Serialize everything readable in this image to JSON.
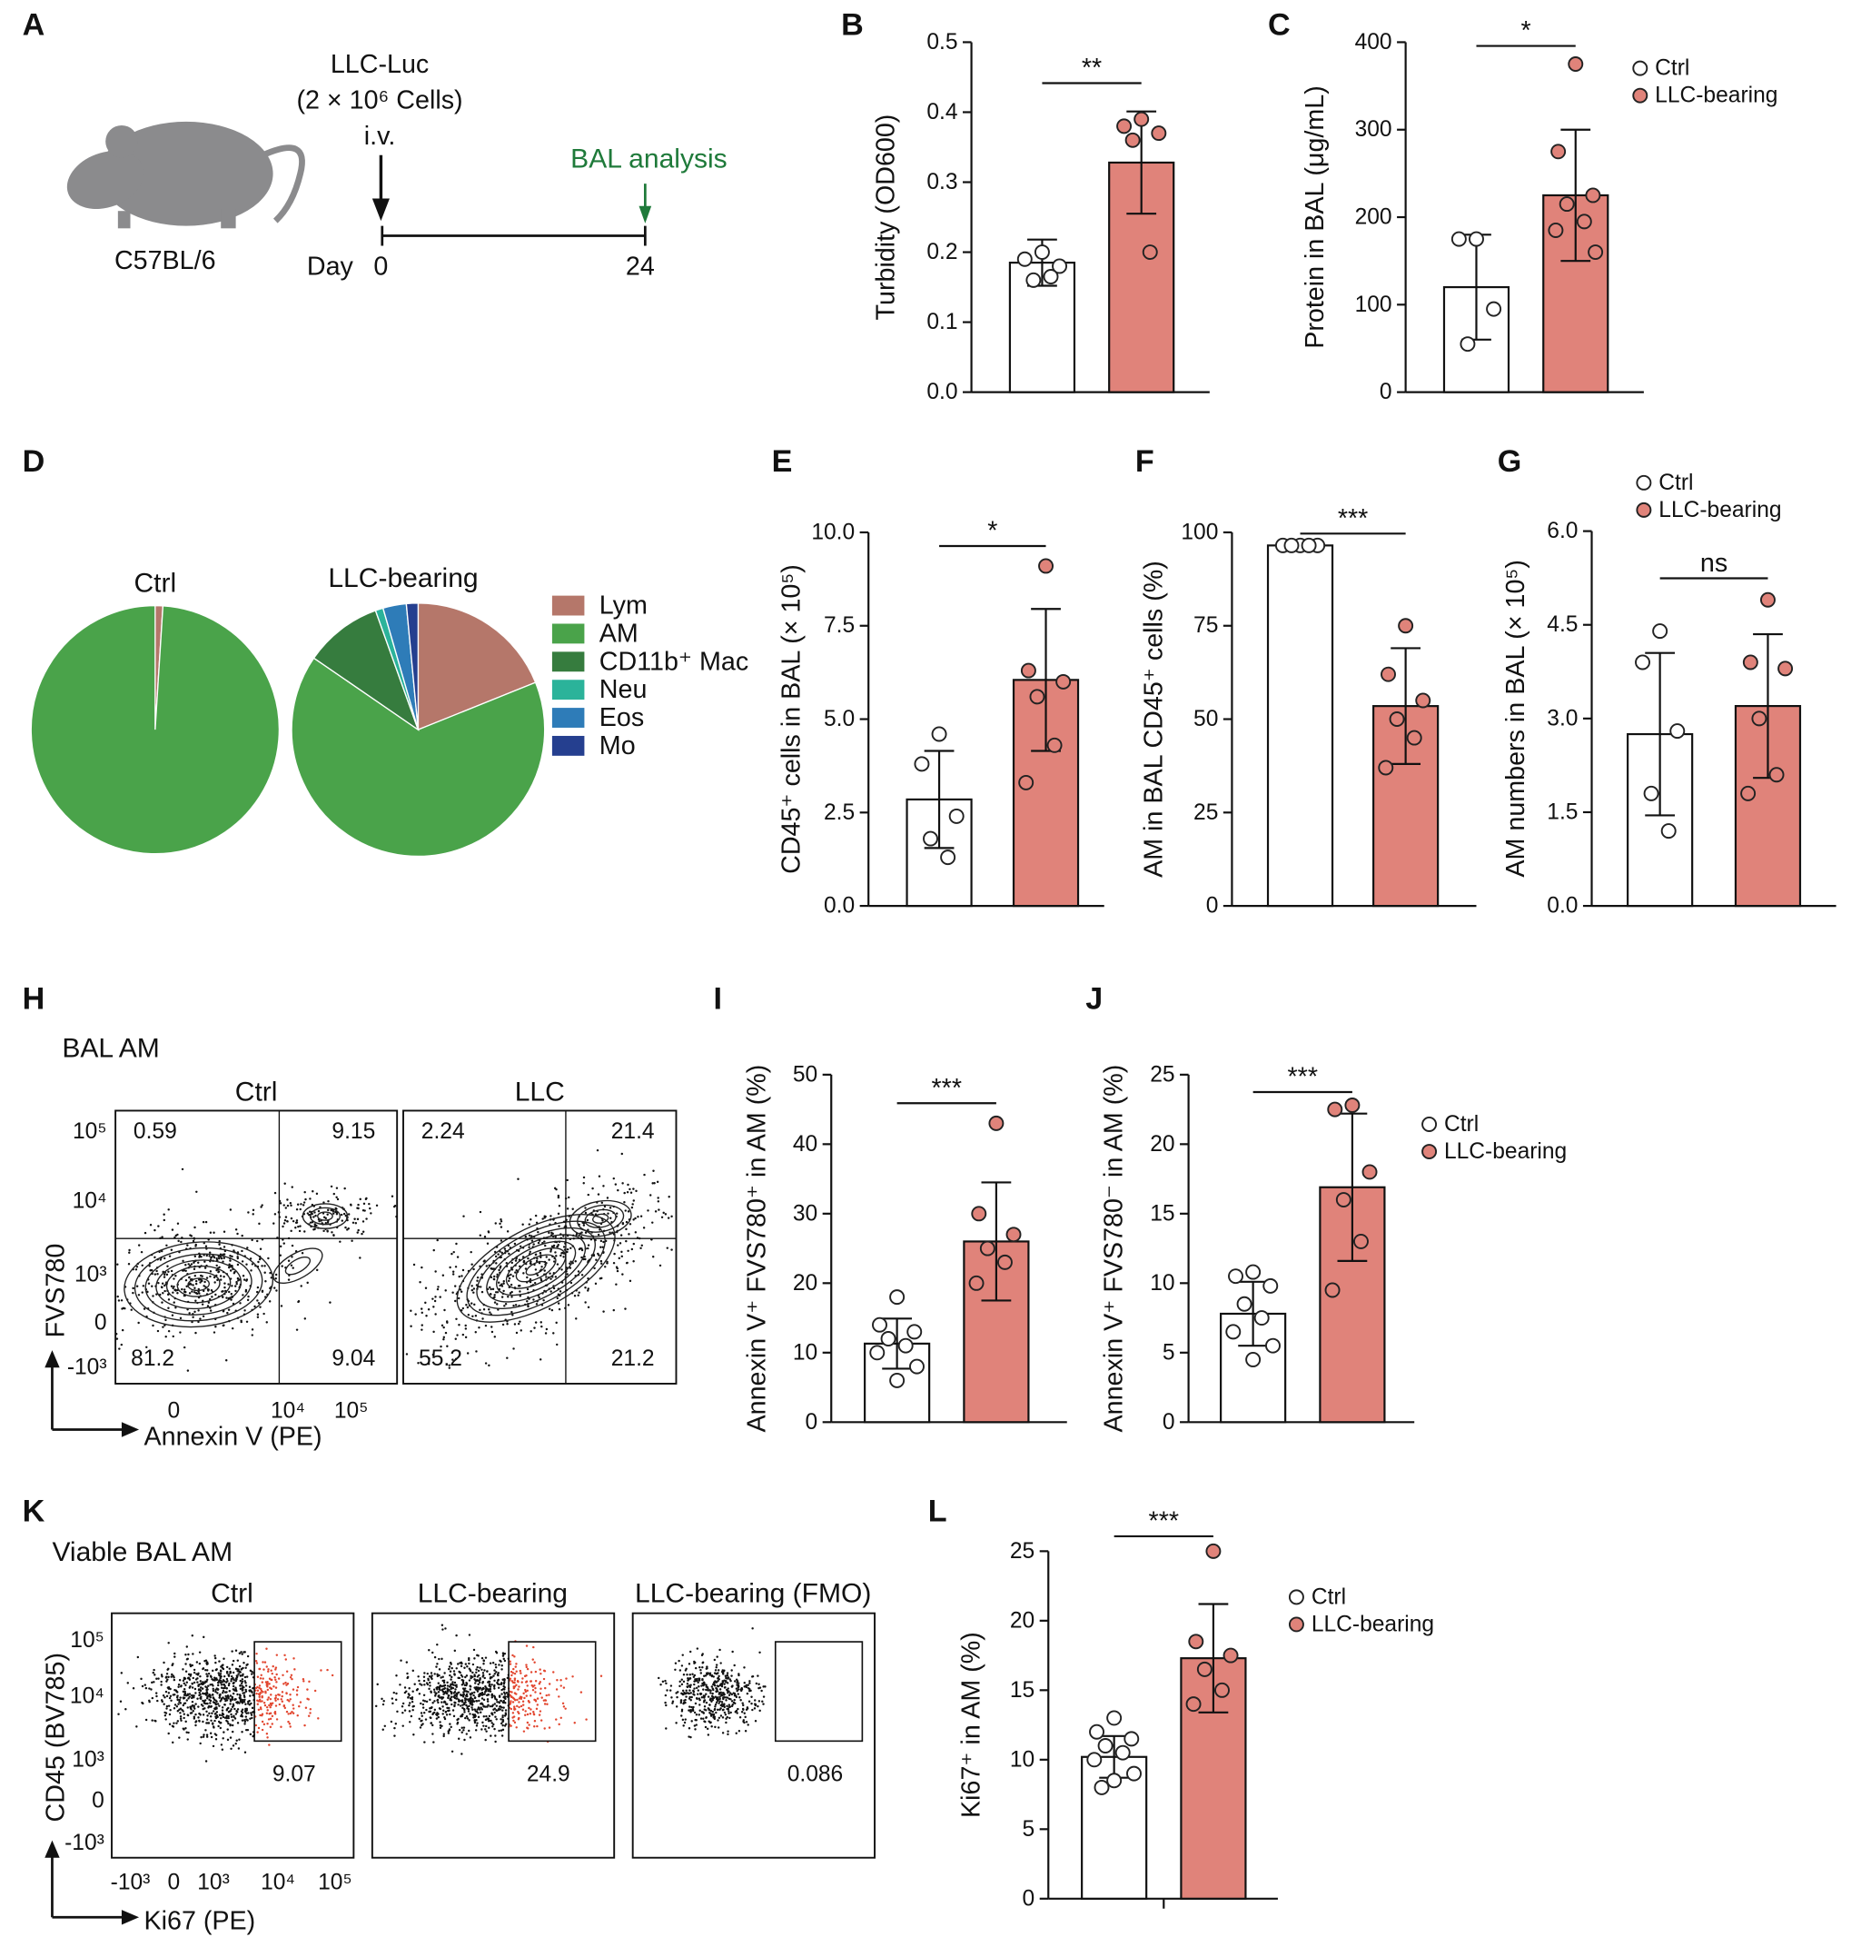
{
  "panel_letters": [
    "A",
    "B",
    "C",
    "D",
    "E",
    "F",
    "G",
    "H",
    "I",
    "J",
    "K",
    "L"
  ],
  "schematic": {
    "strain": "C57BL/6",
    "injection": "LLC-Luc",
    "dose": "(2 × 10⁶ Cells)",
    "route": "i.v.",
    "endpoint": "BAL analysis",
    "axis_label": "Day",
    "day_start": 0,
    "day_end": 24
  },
  "chart_data": [
    {
      "type": "bar",
      "ylabel": "Turbidity (OD600)",
      "ylim": [
        0,
        0.5
      ],
      "yticks": [
        {
          "value": 0,
          "label": "0.0"
        },
        0.1,
        0.2,
        0.3,
        0.4,
        0.5
      ],
      "annotation": "**",
      "series": [
        {
          "color": "#ffffff",
          "values": [
            0.185
          ],
          "errors": [
            0.033
          ],
          "points": [
            0.2,
            0.19,
            0.18,
            0.16,
            0.165
          ]
        },
        {
          "color": "#e0837a",
          "values": [
            0.328
          ],
          "errors": [
            0.073
          ],
          "points": [
            0.39,
            0.38,
            0.37,
            0.36,
            0.2
          ]
        }
      ]
    },
    {
      "type": "bar",
      "ylabel": "Protein in BAL (μg/mL)",
      "ylim": [
        0,
        400
      ],
      "yticks": [
        0,
        100,
        200,
        300,
        400
      ],
      "annotation": "*",
      "series": [
        {
          "name": "Ctrl",
          "color": "#ffffff",
          "values": [
            120
          ],
          "errors": [
            60
          ],
          "points": [
            175,
            175,
            95,
            55
          ]
        },
        {
          "name": "LLC-bearing",
          "color": "#e0837a",
          "values": [
            225
          ],
          "errors": [
            75
          ],
          "points": [
            375,
            275,
            225,
            215,
            195,
            185,
            160
          ]
        }
      ]
    },
    {
      "type": "pie",
      "categories": [
        "Lym",
        "AM",
        "CD11b⁺ Mac",
        "Neu",
        "Eos",
        "Mo"
      ],
      "colors": [
        "#b5776a",
        "#4aa34a",
        "#367c3e",
        "#2bb39a",
        "#2e7cb8",
        "#253f8f"
      ],
      "series": [
        {
          "name": "Ctrl",
          "values": [
            1,
            99,
            0,
            0,
            0,
            0
          ]
        },
        {
          "name": "LLC-bearing",
          "values": [
            19,
            66,
            10,
            1,
            3,
            1.5
          ]
        }
      ]
    },
    {
      "type": "bar",
      "ylabel": "CD45⁺ cells in BAL (× 10⁵)",
      "ylim": [
        0,
        10
      ],
      "yticks": [
        {
          "value": 0,
          "label": "0.0"
        },
        2.5,
        {
          "value": 5,
          "label": "5.0"
        },
        7.5,
        {
          "value": 10,
          "label": "10.0"
        }
      ],
      "annotation": "*",
      "series": [
        {
          "color": "#ffffff",
          "values": [
            2.85
          ],
          "errors": [
            1.3
          ],
          "points": [
            4.6,
            3.8,
            2.4,
            1.8,
            1.3
          ]
        },
        {
          "color": "#e0837a",
          "values": [
            6.05
          ],
          "errors": [
            1.9
          ],
          "points": [
            9.1,
            6.3,
            6.0,
            5.6,
            4.3,
            3.3
          ]
        }
      ]
    },
    {
      "type": "bar",
      "ylabel": "AM in BAL CD45⁺ cells  (%)",
      "ylim": [
        0,
        100
      ],
      "yticks": [
        0,
        25,
        50,
        75,
        100
      ],
      "annotation": "***",
      "series": [
        {
          "color": "#ffffff",
          "values": [
            96.5
          ],
          "errors": [
            0.5
          ],
          "points": [
            96.5,
            96.5,
            96.5,
            96.5,
            96.5
          ]
        },
        {
          "color": "#e0837a",
          "values": [
            53.5
          ],
          "errors": [
            15.5
          ],
          "points": [
            75,
            62,
            55,
            50,
            45,
            37
          ]
        }
      ]
    },
    {
      "type": "bar",
      "ylabel": "AM numbers in BAL (× 10⁵)",
      "ylim": [
        0,
        6
      ],
      "yticks": [
        {
          "value": 0,
          "label": "0.0"
        },
        1.5,
        {
          "value": 3,
          "label": "3.0"
        },
        4.5,
        {
          "value": 6,
          "label": "6.0"
        }
      ],
      "annotation": "ns",
      "series": [
        {
          "name": "Ctrl",
          "color": "#ffffff",
          "values": [
            2.75
          ],
          "errors": [
            1.3
          ],
          "points": [
            4.4,
            3.9,
            2.8,
            1.8,
            1.2
          ]
        },
        {
          "name": "LLC-bearing",
          "color": "#e0837a",
          "values": [
            3.2
          ],
          "errors": [
            1.15
          ],
          "points": [
            4.9,
            3.9,
            3.8,
            3.0,
            2.1,
            1.8
          ]
        }
      ]
    },
    {
      "type": "bar",
      "ylabel": "Annexin V⁺ FVS780⁺ in AM (%)",
      "ylim": [
        0,
        50
      ],
      "yticks": [
        0,
        10,
        20,
        30,
        40,
        50
      ],
      "annotation": "***",
      "series": [
        {
          "color": "#ffffff",
          "values": [
            11.3
          ],
          "errors": [
            3.6
          ],
          "points": [
            18,
            14,
            13,
            12,
            11,
            10,
            8,
            6
          ]
        },
        {
          "color": "#e0837a",
          "values": [
            26
          ],
          "errors": [
            8.5
          ],
          "points": [
            43,
            30,
            27,
            25,
            23,
            20
          ]
        }
      ]
    },
    {
      "type": "bar",
      "ylabel": "Annexin V⁺ FVS780⁻ in AM (%)",
      "ylim": [
        0,
        25
      ],
      "yticks": [
        0,
        5,
        10,
        15,
        20,
        25
      ],
      "annotation": "***",
      "series": [
        {
          "name": "Ctrl",
          "color": "#ffffff",
          "values": [
            7.8
          ],
          "errors": [
            2.3
          ],
          "points": [
            10.8,
            10.5,
            9.8,
            8.5,
            7.5,
            6.5,
            5.5,
            4.5
          ]
        },
        {
          "name": "LLC-bearing",
          "color": "#e0837a",
          "values": [
            16.9
          ],
          "errors": [
            5.3
          ],
          "points": [
            22.8,
            22.5,
            18,
            16,
            13,
            9.5
          ]
        }
      ]
    },
    {
      "type": "bar",
      "ylabel": "Ki67⁺ in AM (%)",
      "ylim": [
        0,
        25
      ],
      "yticks": [
        0,
        5,
        10,
        15,
        20,
        25
      ],
      "annotation": "***",
      "series": [
        {
          "name": "Ctrl",
          "color": "#ffffff",
          "values": [
            10.2
          ],
          "errors": [
            1.5
          ],
          "points": [
            13,
            12,
            11.5,
            11,
            10.5,
            10,
            9,
            8.5,
            8
          ]
        },
        {
          "name": "LLC-bearing",
          "color": "#e0837a",
          "values": [
            17.3
          ],
          "errors": [
            3.9
          ],
          "points": [
            25,
            18.5,
            17.5,
            16.5,
            15,
            14
          ]
        }
      ]
    }
  ],
  "flow_H": {
    "title": "BAL AM",
    "ylabel": "FVS780",
    "xlabel": "Annexin V (PE)",
    "yticks": [
      "10⁵",
      "10⁴",
      "10³",
      "0",
      "-10³"
    ],
    "xticks": [
      "0",
      "10⁴",
      "10⁵"
    ],
    "plots": [
      {
        "title": "Ctrl",
        "quadrants": [
          0.59,
          9.15,
          81.2,
          9.04
        ]
      },
      {
        "title": "LLC",
        "quadrants": [
          2.24,
          21.4,
          55.2,
          21.2
        ]
      }
    ]
  },
  "flow_K": {
    "title": "Viable BAL AM",
    "ylabel": "CD45 (BV785)",
    "xlabel": "Ki67 (PE)",
    "yticks": [
      "10⁵",
      "10⁴",
      "10³",
      "0",
      "-10³"
    ],
    "xticks": [
      "-10³",
      "0",
      "10³",
      "10⁴",
      "10⁵"
    ],
    "plots": [
      {
        "title": "Ctrl",
        "gate": 9.07
      },
      {
        "title": "LLC-bearing",
        "gate": 24.9
      },
      {
        "title": "LLC-bearing (FMO)",
        "gate": 0.086
      }
    ]
  }
}
